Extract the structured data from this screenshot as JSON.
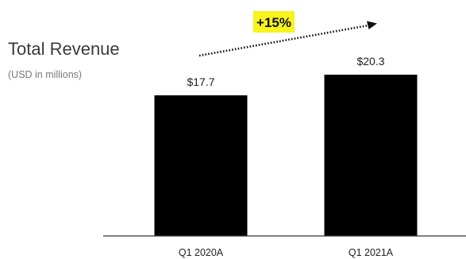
{
  "chart_data": {
    "type": "bar",
    "title": "Total Revenue",
    "subtitle": "(USD in millions)",
    "categories": [
      "Q1 2020A",
      "Q1 2021A"
    ],
    "values": [
      17.7,
      20.3
    ],
    "value_labels": [
      "$17.7",
      "$20.3"
    ],
    "ylim": [
      0,
      21.5
    ],
    "grid": false,
    "bar_color": "#000000",
    "annotation": {
      "text": "+15%",
      "highlight_color": "#f7f31c",
      "style": "dotted-arrow"
    }
  }
}
